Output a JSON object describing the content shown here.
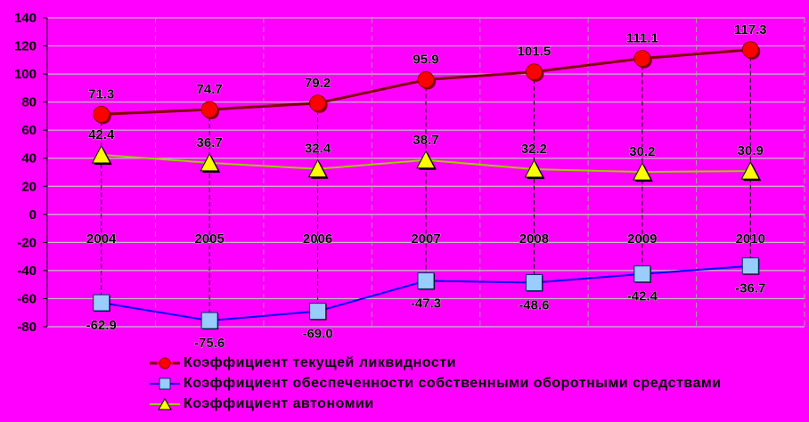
{
  "chart_data": {
    "type": "line",
    "categories": [
      "2004",
      "2005",
      "2006",
      "2007",
      "2008",
      "2009",
      "2010"
    ],
    "ylim": [
      -80,
      140
    ],
    "yticks": [
      140,
      120,
      100,
      80,
      60,
      40,
      20,
      0,
      -20,
      -40,
      -60,
      -80
    ],
    "grid": true,
    "legend_position": "bottom",
    "series": [
      {
        "name": "Коэффициент текущей ликвидности",
        "values": [
          71.3,
          74.7,
          79.2,
          95.9,
          101.5,
          111.1,
          117.3
        ],
        "labels": [
          "71.3",
          "74.7",
          "79.2",
          "95.9",
          "101.5",
          "111.1",
          "117.3"
        ],
        "marker": "circle",
        "line_color": "#800000",
        "marker_color": "#ff0000"
      },
      {
        "name": "Коэффициент обеспеченности собственными оборотными средствами",
        "values": [
          -62.9,
          -75.6,
          -69.0,
          -47.3,
          -48.6,
          -42.4,
          -36.7
        ],
        "labels": [
          "-62.9",
          "-75.6",
          "-69.0",
          "-47.3",
          "-48.6",
          "-42.4",
          "-36.7"
        ],
        "marker": "square",
        "line_color": "#0000ff",
        "marker_color": "#99ccff"
      },
      {
        "name": "Коэффициент автономии",
        "values": [
          42.4,
          36.7,
          32.4,
          38.7,
          32.2,
          30.2,
          30.9
        ],
        "labels": [
          "42.4",
          "36.7",
          "32.4",
          "38.7",
          "32.2",
          "30.2",
          "30.9"
        ],
        "marker": "triangle",
        "line_color": "#99cc00",
        "marker_color": "#ffff00"
      }
    ]
  }
}
